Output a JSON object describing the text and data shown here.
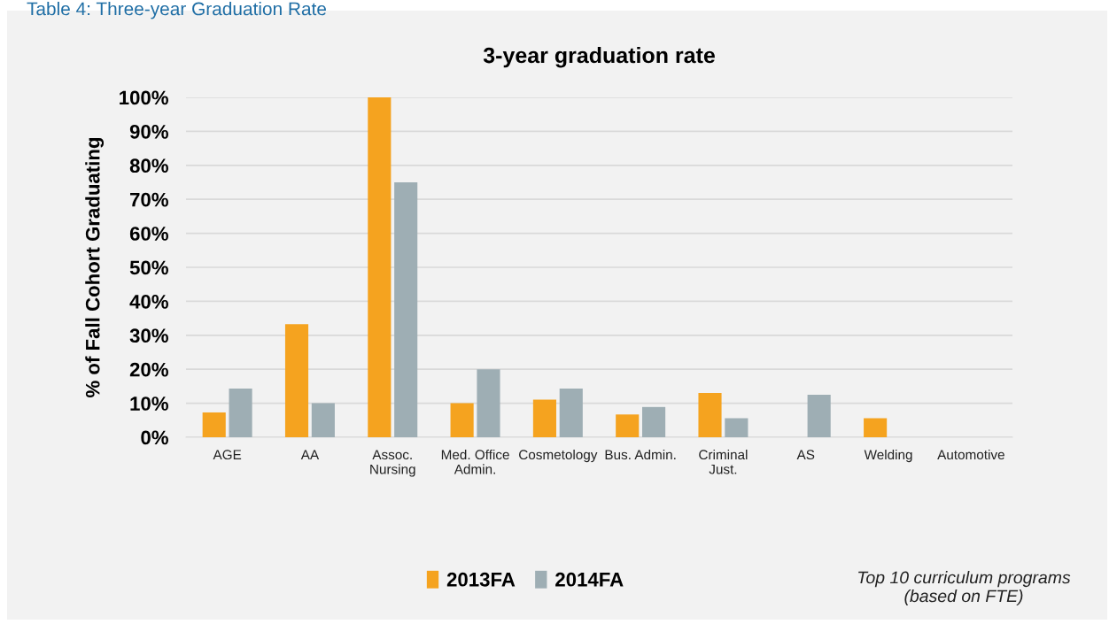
{
  "chart_data": {
    "type": "bar",
    "title": "3-year graduation rate",
    "ylabel": "% of Fall Cohort Graduating",
    "categories": [
      "AGE",
      "AA",
      "Assoc.\nNursing",
      "Med. Office\nAdmin.",
      "Cosmetology",
      "Bus. Admin.",
      "Criminal\nJust.",
      "AS",
      "Welding",
      "Automotive"
    ],
    "series": [
      {
        "name": "2013FA",
        "color": "#f5a31f",
        "values": [
          7.3,
          33.3,
          100,
          10,
          11.1,
          6.7,
          13,
          null,
          5.6,
          null
        ]
      },
      {
        "name": "2014FA",
        "color": "#9eaeb4",
        "values": [
          14.3,
          10,
          75,
          20,
          14.3,
          8.9,
          5.6,
          12.5,
          null,
          null
        ]
      }
    ],
    "ylim": [
      0,
      100
    ],
    "yticks": [
      {
        "value": 0,
        "label": "0%"
      },
      {
        "value": 10,
        "label": "10%"
      },
      {
        "value": 20,
        "label": "20%"
      },
      {
        "value": 30,
        "label": "30%"
      },
      {
        "value": 40,
        "label": "40%"
      },
      {
        "value": 50,
        "label": "50%"
      },
      {
        "value": 60,
        "label": "60%"
      },
      {
        "value": 70,
        "label": "70%"
      },
      {
        "value": 80,
        "label": "80%"
      },
      {
        "value": 90,
        "label": "90%"
      },
      {
        "value": 100,
        "label": "100%"
      }
    ],
    "grid": "y",
    "legend": "bottom",
    "annotations": [
      "Table 4: Three-year Graduation Rate",
      "Top 10 curriculum programs\n(based on FTE)"
    ]
  }
}
